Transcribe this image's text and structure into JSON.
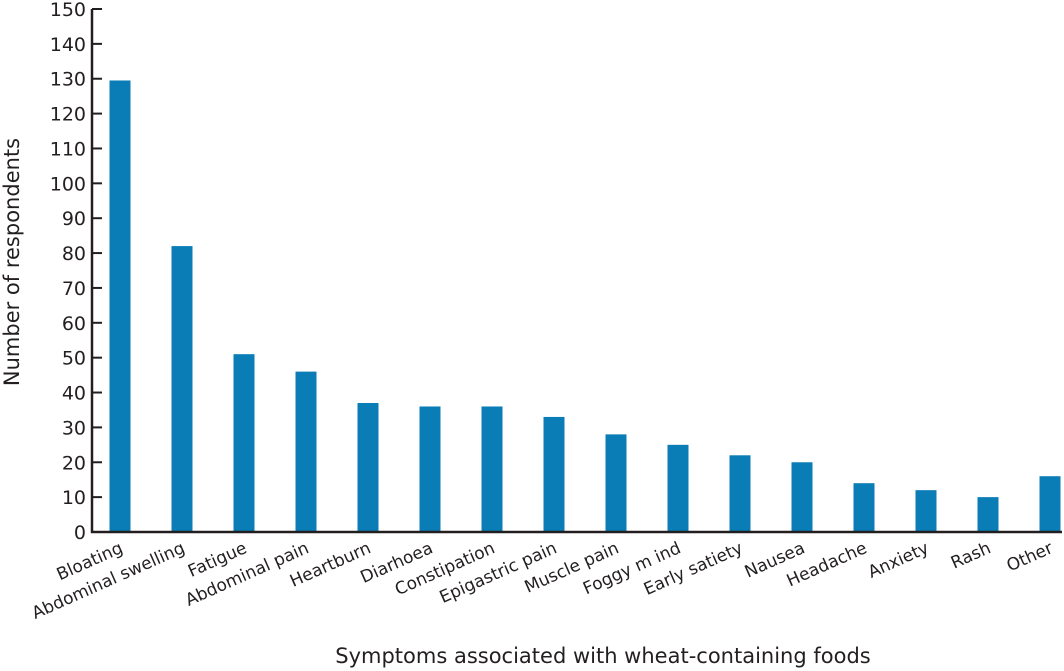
{
  "chart_data": {
    "type": "bar",
    "title": "",
    "xlabel": "Symptoms associated with wheat-containing foods",
    "ylabel": "Number of respondents",
    "ylim": [
      0,
      150
    ],
    "yticks": [
      0,
      10,
      20,
      30,
      40,
      50,
      60,
      70,
      80,
      90,
      100,
      110,
      120,
      130,
      140,
      150
    ],
    "grid": false,
    "bar_color": "#0a7db6",
    "categories": [
      "Bloating",
      "Abdominal swelling",
      "Fatigue",
      "Abdominal pain",
      "Heartburn",
      "Diarhoea",
      "Constipation",
      "Epigastric pain",
      "Muscle pain",
      "Foggy m ind",
      "Early satiety",
      "Nausea",
      "Headache",
      "Anxiety",
      "Rash",
      "Other"
    ],
    "values": [
      129.5,
      82,
      51,
      46,
      37,
      36,
      36,
      33,
      28,
      25,
      22,
      20,
      14,
      12,
      10,
      16
    ]
  }
}
